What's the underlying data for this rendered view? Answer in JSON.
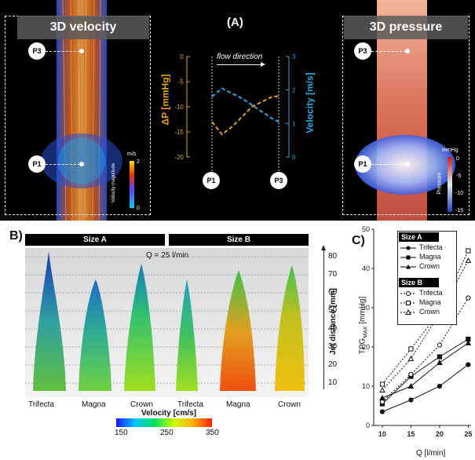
{
  "panel_a": {
    "label": "(A)",
    "velocity_title": "3D velocity",
    "pressure_title": "3D pressure",
    "p1": "P1",
    "p3": "P3",
    "flow_direction": "flow direction",
    "velocity_colorbar": {
      "unit": "m/s",
      "max": "2",
      "min": "0",
      "label": "Velocity magnitude"
    },
    "pressure_colorbar": {
      "unit": "mmHg",
      "ticks": [
        "0",
        "-5",
        "-10",
        "-15"
      ],
      "label": "Pressure"
    }
  },
  "panel_b": {
    "label": "B)",
    "size_a": "Size A",
    "size_b": "Size B",
    "flow_note": "Q = 25 l/min",
    "valves": [
      "Trifecta",
      "Magna",
      "Crown",
      "Trifecta",
      "Magna",
      "Crown"
    ],
    "jet_axis_label": "Jet distance [mm]",
    "jet_ticks": [
      "80",
      "70",
      "60",
      "50",
      "40",
      "30",
      "20",
      "10"
    ],
    "velocity_label": "Velocity [cm/s]",
    "velocity_ticks": [
      "150",
      "250",
      "350"
    ]
  },
  "panel_c": {
    "label": "C)",
    "ylabel_main": "TPG",
    "ylabel_sub": "MAX",
    "ylabel_unit": " [mmHg]",
    "xlabel": "Q [l/min]",
    "legend_a_title": "Size A",
    "legend_b_title": "Size B",
    "legend_items": [
      "Trifecta",
      "Magna",
      "Crown"
    ]
  },
  "chart_data": [
    {
      "type": "line",
      "title": "",
      "xlabel": "",
      "y_left_label": "ΔP [mmHg]",
      "y_right_label": "Velocity [m/s]",
      "y_left_ticks": [
        0,
        -5,
        -10,
        -15,
        -20
      ],
      "y_right_ticks": [
        3,
        2,
        1,
        0
      ],
      "x_labels": [
        "P1",
        "P3"
      ],
      "ylim_left": [
        -20,
        0
      ],
      "ylim_right": [
        0,
        3
      ],
      "colors": {
        "pressure": "#e6a020",
        "velocity": "#2aa7e0"
      },
      "series": [
        {
          "name": "ΔP",
          "axis": "left",
          "x": [
            0,
            0.15,
            0.3,
            0.45,
            0.6,
            0.75,
            0.9,
            1.0
          ],
          "y": [
            -13,
            -15.5,
            -14,
            -12,
            -10,
            -9,
            -8,
            -7.9
          ]
        },
        {
          "name": "Velocity",
          "axis": "right",
          "x": [
            0,
            0.15,
            0.3,
            0.45,
            0.6,
            0.75,
            0.9,
            1.0
          ],
          "y": [
            1.8,
            2.05,
            1.9,
            1.75,
            1.55,
            1.35,
            1.15,
            1.05
          ]
        }
      ]
    },
    {
      "type": "line",
      "title": "",
      "xlabel": "Q [l/min]",
      "ylabel": "TPGMAX [mmHg]",
      "x": [
        10,
        15,
        20,
        25
      ],
      "ylim": [
        0,
        50
      ],
      "y_ticks": [
        0,
        10,
        20,
        30,
        40,
        50
      ],
      "series": [
        {
          "name": "Trifecta",
          "group": "Size A",
          "values": [
            3.5,
            6.5,
            10,
            15.5
          ]
        },
        {
          "name": "Magna",
          "group": "Size A",
          "values": [
            5.5,
            12.5,
            17.5,
            22
          ]
        },
        {
          "name": "Crown",
          "group": "Size A",
          "values": [
            7,
            10,
            16,
            21
          ]
        },
        {
          "name": "Trifecta",
          "group": "Size B",
          "values": [
            6,
            13,
            20.5,
            32.5
          ]
        },
        {
          "name": "Magna",
          "group": "Size B",
          "values": [
            10.5,
            19.5,
            29,
            44.5
          ]
        },
        {
          "name": "Crown",
          "group": "Size B",
          "values": [
            9,
            17,
            28.5,
            42
          ]
        }
      ]
    }
  ]
}
